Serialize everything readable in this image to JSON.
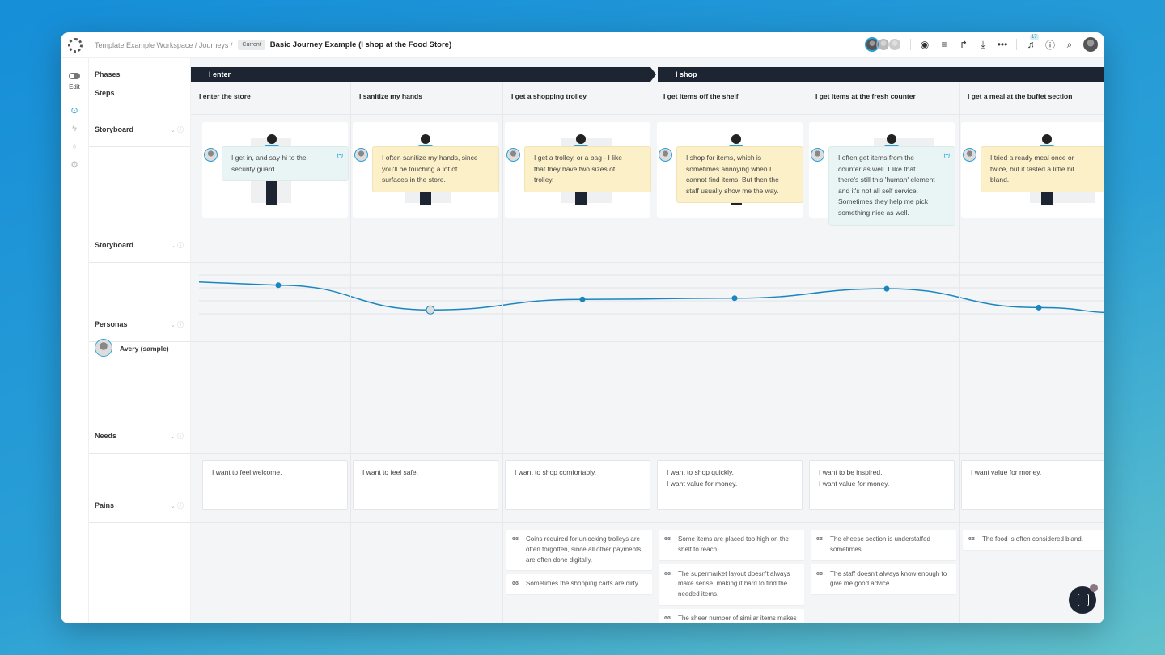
{
  "header": {
    "breadcrumb": "Template Example Workspace / Journeys /",
    "status_badge": "Current",
    "title": "Basic Journey Example (I shop at the Food Store)",
    "notification_count": "17",
    "icons": [
      "eye-icon",
      "filter-icon",
      "share-icon",
      "download-icon",
      "more-icon",
      "bell-icon",
      "help-icon",
      "search-icon"
    ]
  },
  "rail": {
    "edit_label": "Edit",
    "icons": [
      "pin-icon",
      "bolt-icon",
      "lightbulb-icon",
      "gear-icon"
    ]
  },
  "labels": {
    "phases": "Phases",
    "steps": "Steps",
    "storyboard": "Storyboard",
    "emotion_row": "Storyboard",
    "personas": "Personas",
    "persona_name": "Avery (sample)",
    "needs": "Needs",
    "pains": "Pains"
  },
  "phases": [
    {
      "label": "I enter"
    },
    {
      "label": "I shop"
    }
  ],
  "colors": {
    "phase_bar": "#1e2532",
    "curve": "#1a86c0",
    "positive_card": "#e9f5f4",
    "negative_card": "#fcf0c8"
  },
  "steps": [
    {
      "label": "I enter the store",
      "emotion": 4.6,
      "sentiment": "positive",
      "persona_text": "I get in, and say hi to the security guard.",
      "needs": [
        "I want to feel welcome."
      ],
      "pains": []
    },
    {
      "label": "I sanitize my hands",
      "emotion": 2.5,
      "sentiment": "negative",
      "persona_text": "I often sanitize my hands, since you'll be touching a lot of surfaces in the store.",
      "needs": [
        "I want to feel safe."
      ],
      "pains": []
    },
    {
      "label": "I get a shopping trolley",
      "emotion": 3.4,
      "sentiment": "negative",
      "persona_text": "I get a trolley, or a bag - I like that they have two sizes of trolley.",
      "needs": [
        "I want to shop comfortably."
      ],
      "pains": [
        "Coins required for unlocking trolleys are often forgotten, since all other payments are often done digitally.",
        "Sometimes the shopping carts are dirty."
      ]
    },
    {
      "label": "I get items off the shelf",
      "emotion": 3.5,
      "sentiment": "negative",
      "persona_text": "I shop for items, which is sometimes annoying when I cannot find items. But then the staff usually show me the way.",
      "needs": [
        "I want to shop quickly.",
        "I want value for money."
      ],
      "pains": [
        "Some items are placed too high on the shelf to reach.",
        "The supermarket layout doesn't always make sense, making it hard to find the needed items.",
        "The sheer number of similar items makes it hard to compare them."
      ]
    },
    {
      "label": "I get items at the fresh counter",
      "emotion": 4.3,
      "sentiment": "positive",
      "persona_text": "I often get items from the counter as well. I like that there's still this 'human' element and it's not all self service. Sometimes they help me pick something nice as well.",
      "needs": [
        "I want to be inspired.",
        "I want value for money."
      ],
      "pains": [
        "The cheese section is understaffed sometimes.",
        "The staff doesn't always know enough to give me good advice."
      ]
    },
    {
      "label": "I get a meal at the buffet section",
      "emotion": 2.7,
      "sentiment": "negative",
      "persona_text": "I tried a ready meal once or twice, but it tasted a little bit bland.",
      "needs": [
        "I want value for money."
      ],
      "pains": [
        "The food is often considered bland."
      ]
    }
  ]
}
